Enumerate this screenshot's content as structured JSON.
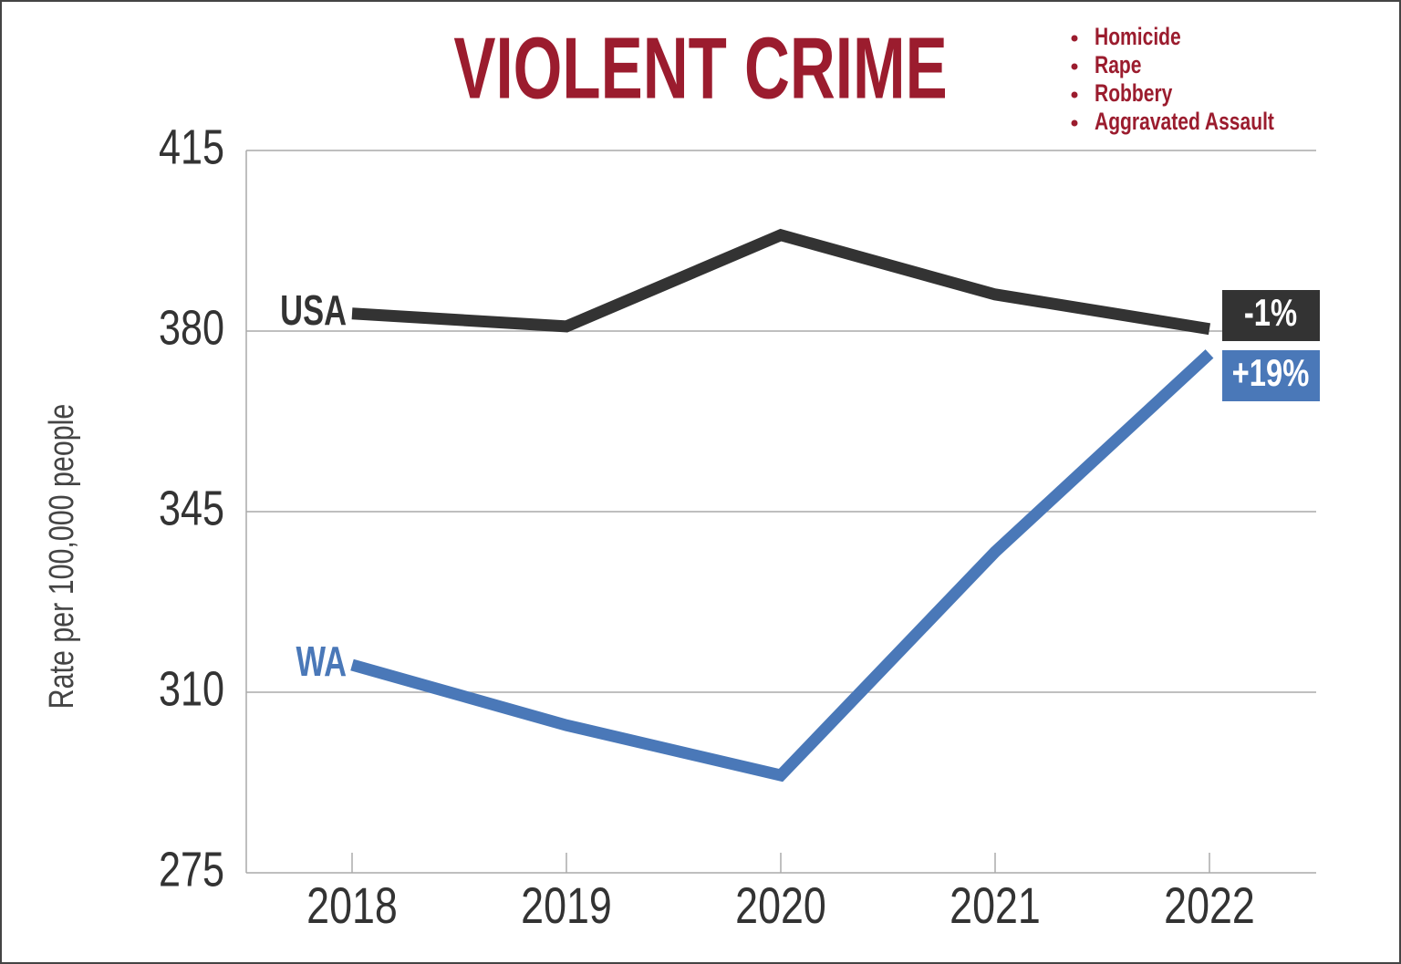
{
  "chart_data": {
    "type": "line",
    "title": "VIOLENT CRIME",
    "crime_types": [
      "Homicide",
      "Rape",
      "Robbery",
      "Aggravated Assault"
    ],
    "y_label": "Rate per 100,000 people",
    "categories": [
      "2018",
      "2019",
      "2020",
      "2021",
      "2022"
    ],
    "series": [
      {
        "name": "USA",
        "color": "#333333",
        "values": [
          383.4,
          380.9,
          398.6,
          387.1,
          380.4
        ],
        "end_label": "-1%"
      },
      {
        "name": "WA",
        "color": "#4a78b8",
        "values": [
          315.3,
          303.6,
          293.9,
          337.2,
          375.6
        ],
        "end_label": "+19%"
      }
    ],
    "ylim": [
      275,
      415
    ],
    "yticks": [
      275,
      310,
      345,
      380,
      415
    ],
    "grid": true,
    "title_color": "#9b1c2e"
  }
}
